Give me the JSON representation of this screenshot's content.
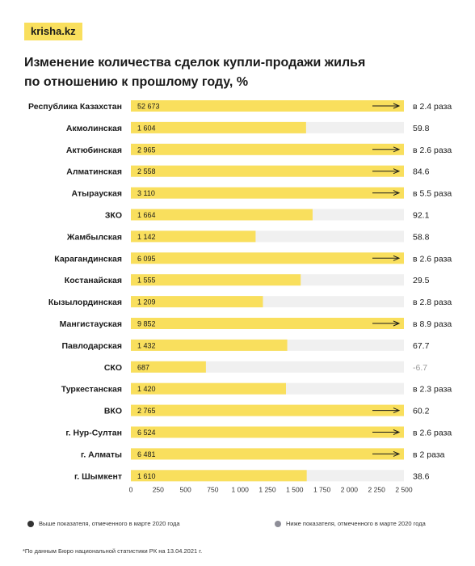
{
  "brand": {
    "logo_text": "krisha.kz"
  },
  "title_lines": [
    "Изменение количества сделок купли-продажи жилья",
    "по отношению к прошлому году, %"
  ],
  "colors": {
    "bar": "#f9df5d",
    "track": "#f0f0f0",
    "above_marker": "#333333",
    "below_marker": "#8e8e98",
    "negative_text": "#9a9a9a"
  },
  "legend": {
    "above_label": "Выше показателя, отмеченного в марте 2020 года",
    "below_label": "Ниже показателя, отмеченного в марте 2020 года"
  },
  "footnote": "*По данным Бюро национальной статистики РК на 13.04.2021 г.",
  "chart_data": {
    "type": "bar",
    "orientation": "horizontal",
    "title": "Изменение количества сделок купли-продажи жилья по отношению к прошлому году, %",
    "xlim": [
      0,
      2500
    ],
    "x_ticks": [
      "0",
      "250",
      "500",
      "750",
      "1 000",
      "1 250",
      "1 500",
      "1 750",
      "2 000",
      "2 250",
      "2 500"
    ],
    "x_tick_values": [
      0,
      250,
      500,
      750,
      1000,
      1250,
      1500,
      1750,
      2000,
      2250,
      2500
    ],
    "grid": false,
    "rows": [
      {
        "category": "Республика Казахстан",
        "value": 52673,
        "value_label": "52 673",
        "change": "в 2.4 раза",
        "arrow": true
      },
      {
        "category": "Акмолинская",
        "value": 1604,
        "value_label": "1 604",
        "change": "59.8",
        "arrow": false
      },
      {
        "category": "Актюбинская",
        "value": 2965,
        "value_label": "2 965",
        "change": "в 2.6 раза",
        "arrow": true
      },
      {
        "category": "Алматинская",
        "value": 2558,
        "value_label": "2 558",
        "change": "84.6",
        "arrow": true
      },
      {
        "category": "Атырауская",
        "value": 3110,
        "value_label": "3 110",
        "change": "в 5.5 раза",
        "arrow": true
      },
      {
        "category": "ЗКО",
        "value": 1664,
        "value_label": "1 664",
        "change": "92.1",
        "arrow": false
      },
      {
        "category": "Жамбылская",
        "value": 1142,
        "value_label": "1 142",
        "change": "58.8",
        "arrow": false
      },
      {
        "category": "Карагандинская",
        "value": 6095,
        "value_label": "6 095",
        "change": "в 2.6 раза",
        "arrow": true
      },
      {
        "category": "Костанайская",
        "value": 1555,
        "value_label": "1 555",
        "change": "29.5",
        "arrow": false
      },
      {
        "category": "Кызылординская",
        "value": 1209,
        "value_label": "1 209",
        "change": "в 2.8 раза",
        "arrow": false
      },
      {
        "category": "Мангистауская",
        "value": 9852,
        "value_label": "9 852",
        "change": "в 8.9 раза",
        "arrow": true
      },
      {
        "category": "Павлодарская",
        "value": 1432,
        "value_label": "1 432",
        "change": "67.7",
        "arrow": false
      },
      {
        "category": "СКО",
        "value": 687,
        "value_label": "687",
        "change": "-6.7",
        "arrow": false
      },
      {
        "category": "Туркестанская",
        "value": 1420,
        "value_label": "1 420",
        "change": "в 2.3 раза",
        "arrow": false
      },
      {
        "category": "ВКО",
        "value": 2765,
        "value_label": "2 765",
        "change": "60.2",
        "arrow": true
      },
      {
        "category": "г. Нур-Султан",
        "value": 6524,
        "value_label": "6 524",
        "change": "в 2.6 раза",
        "arrow": true
      },
      {
        "category": "г. Алматы",
        "value": 6481,
        "value_label": "6 481",
        "change": "в 2 раза",
        "arrow": true
      },
      {
        "category": "г. Шымкент",
        "value": 1610,
        "value_label": "1 610",
        "change": "38.6",
        "arrow": false
      }
    ]
  }
}
